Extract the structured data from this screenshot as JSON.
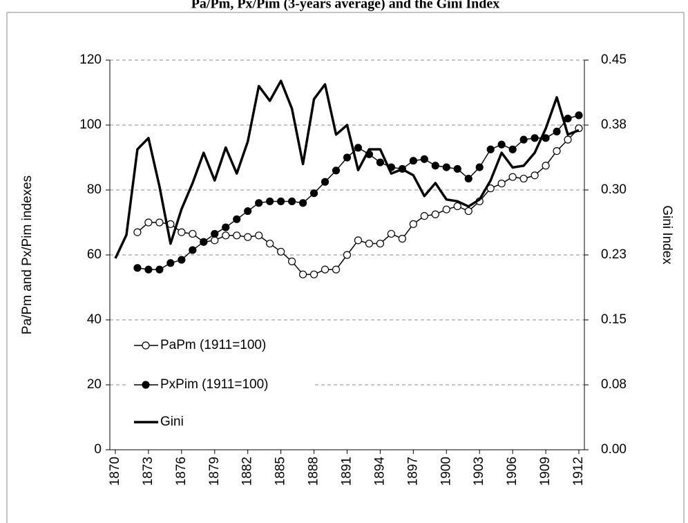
{
  "chart_data": {
    "type": "line",
    "title": "Pa/Pm, Px/Pim (3-years average) and the Gini Index",
    "y_label": "Pa/Pm and Px/Pim indexes",
    "y2_label": "Gini Index",
    "x": [
      1870,
      1871,
      1872,
      1873,
      1874,
      1875,
      1876,
      1877,
      1878,
      1879,
      1880,
      1881,
      1882,
      1883,
      1884,
      1885,
      1886,
      1887,
      1888,
      1889,
      1890,
      1891,
      1892,
      1893,
      1894,
      1895,
      1896,
      1897,
      1898,
      1899,
      1900,
      1901,
      1902,
      1903,
      1904,
      1905,
      1906,
      1907,
      1908,
      1909,
      1910,
      1911,
      1912
    ],
    "xlim": [
      1869.5,
      1912.5
    ],
    "xticks": [
      1870,
      1873,
      1876,
      1879,
      1882,
      1885,
      1888,
      1891,
      1894,
      1897,
      1900,
      1903,
      1906,
      1909,
      1912
    ],
    "ylim": [
      0,
      120
    ],
    "yticks": [
      0,
      20,
      40,
      60,
      80,
      100,
      120
    ],
    "y2lim": [
      0,
      0.45
    ],
    "y2ticks": [
      {
        "value": 0,
        "label": "0.00"
      },
      {
        "value": 0.075,
        "label": "0.08"
      },
      0.15,
      {
        "value": 0.225,
        "label": "0.23"
      },
      {
        "value": 0.3,
        "label": "0.30"
      },
      {
        "value": 0.375,
        "label": "0.38"
      },
      0.45
    ],
    "grid": true,
    "series": [
      {
        "name": "PaPm (1911=100)",
        "color": "#000000",
        "marker": "open-circle",
        "values": [
          null,
          null,
          67,
          70,
          70,
          69.5,
          67,
          66.5,
          64,
          64.5,
          66,
          66,
          65.5,
          66,
          63.5,
          61,
          58,
          54,
          54,
          55.5,
          55.5,
          60,
          64.5,
          63.5,
          63.5,
          66.5,
          65,
          69.5,
          72,
          72.5,
          74,
          75,
          73.5,
          76.5,
          80.5,
          82,
          84,
          83.5,
          84.5,
          87.5,
          92,
          95.5,
          99
        ]
      },
      {
        "name": "PxPim (1911=100)",
        "color": "#000000",
        "marker": "filled-circle",
        "values": [
          null,
          null,
          56,
          55.5,
          55.5,
          57.5,
          58.5,
          61.5,
          64,
          66.5,
          68.5,
          71,
          73.5,
          76,
          76.5,
          76.5,
          76.5,
          76,
          79,
          82.5,
          86,
          90,
          93,
          91,
          88.5,
          87,
          86.5,
          89,
          89.5,
          87.5,
          87,
          86.5,
          83.5,
          87,
          92.5,
          94,
          92.5,
          95.5,
          96,
          96,
          98,
          102,
          103
        ]
      },
      {
        "name": "Gini",
        "color": "#000000",
        "axis": "y2",
        "values": [
          0.221,
          0.248,
          0.347,
          0.36,
          0.304,
          0.238,
          0.278,
          0.308,
          0.343,
          0.311,
          0.349,
          0.319,
          0.356,
          0.42,
          0.403,
          0.426,
          0.394,
          0.33,
          0.405,
          0.422,
          0.364,
          0.375,
          0.323,
          0.347,
          0.347,
          0.319,
          0.324,
          0.317,
          0.293,
          0.308,
          0.289,
          0.287,
          0.281,
          0.289,
          0.311,
          0.343,
          0.326,
          0.328,
          0.343,
          0.371,
          0.407,
          0.364,
          0.369
        ]
      }
    ]
  }
}
